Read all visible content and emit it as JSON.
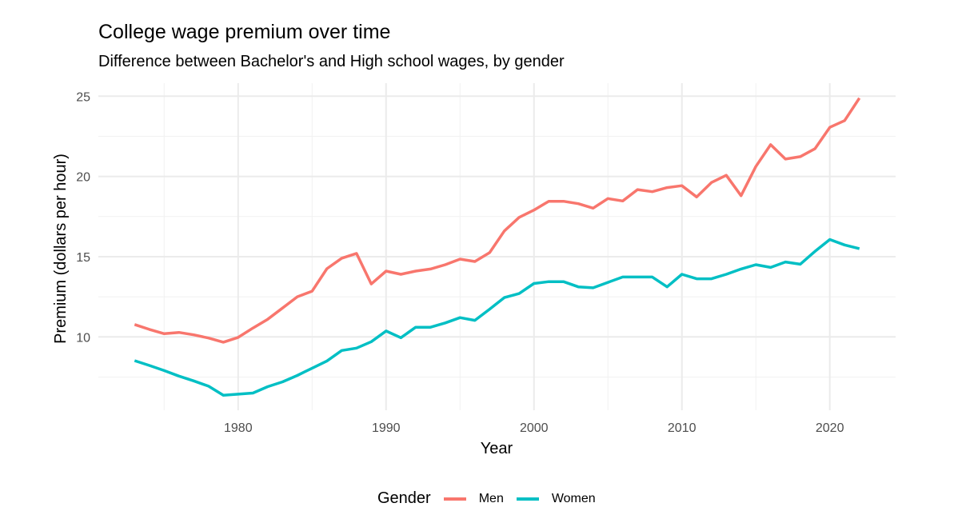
{
  "chart_data": {
    "type": "line",
    "title": "College wage premium over time",
    "subtitle": "Difference between Bachelor's and High school wages, by gender",
    "xlabel": "Year",
    "ylabel": "Premium (dollars per hour)",
    "xlim": [
      1970.55,
      2024.45
    ],
    "ylim": [
      5.43,
      25.81
    ],
    "xticks": [
      1980,
      1990,
      2000,
      2010,
      2020
    ],
    "xtick_labels": [
      "1980",
      "1990",
      "2000",
      "2010",
      "2020"
    ],
    "xminor": [
      1975,
      1985,
      1995,
      2005,
      2015
    ],
    "yticks": [
      10,
      15,
      20,
      25
    ],
    "ytick_labels": [
      "10",
      "15",
      "20",
      "25"
    ],
    "yminor": [
      7.5,
      12.5,
      17.5,
      22.5
    ],
    "grid": true,
    "legend": {
      "title": "Gender",
      "position": "bottom"
    },
    "x": [
      1973,
      1974,
      1975,
      1976,
      1977,
      1978,
      1979,
      1980,
      1981,
      1982,
      1983,
      1984,
      1985,
      1986,
      1987,
      1988,
      1989,
      1990,
      1991,
      1992,
      1993,
      1994,
      1995,
      1996,
      1997,
      1998,
      1999,
      2000,
      2001,
      2002,
      2003,
      2004,
      2005,
      2006,
      2007,
      2008,
      2009,
      2010,
      2011,
      2012,
      2013,
      2014,
      2015,
      2016,
      2017,
      2018,
      2019,
      2020,
      2021,
      2022
    ],
    "series": [
      {
        "name": "Men",
        "color": "#F8766D",
        "values": [
          10.77,
          10.47,
          10.2,
          10.28,
          10.13,
          9.93,
          9.67,
          9.97,
          10.55,
          11.1,
          11.8,
          12.5,
          12.85,
          14.25,
          14.9,
          15.2,
          13.3,
          14.1,
          13.9,
          14.1,
          14.23,
          14.5,
          14.85,
          14.7,
          15.25,
          16.6,
          17.45,
          17.9,
          18.45,
          18.45,
          18.3,
          18.02,
          18.62,
          18.47,
          19.18,
          19.05,
          19.3,
          19.42,
          18.72,
          19.62,
          20.07,
          18.8,
          20.62,
          21.98,
          21.08,
          21.23,
          21.73,
          23.06,
          23.48,
          24.88
        ]
      },
      {
        "name": "Women",
        "color": "#00BFC4",
        "values": [
          8.52,
          8.22,
          7.9,
          7.56,
          7.26,
          6.93,
          6.36,
          6.43,
          6.5,
          6.9,
          7.2,
          7.6,
          8.05,
          8.5,
          9.15,
          9.3,
          9.7,
          10.37,
          9.95,
          10.6,
          10.6,
          10.87,
          11.2,
          11.03,
          11.73,
          12.45,
          12.7,
          13.33,
          13.44,
          13.44,
          13.12,
          13.06,
          13.4,
          13.73,
          13.73,
          13.73,
          13.12,
          13.9,
          13.62,
          13.62,
          13.9,
          14.23,
          14.5,
          14.33,
          14.67,
          14.53,
          15.33,
          16.07,
          15.73,
          15.5
        ]
      }
    ]
  }
}
